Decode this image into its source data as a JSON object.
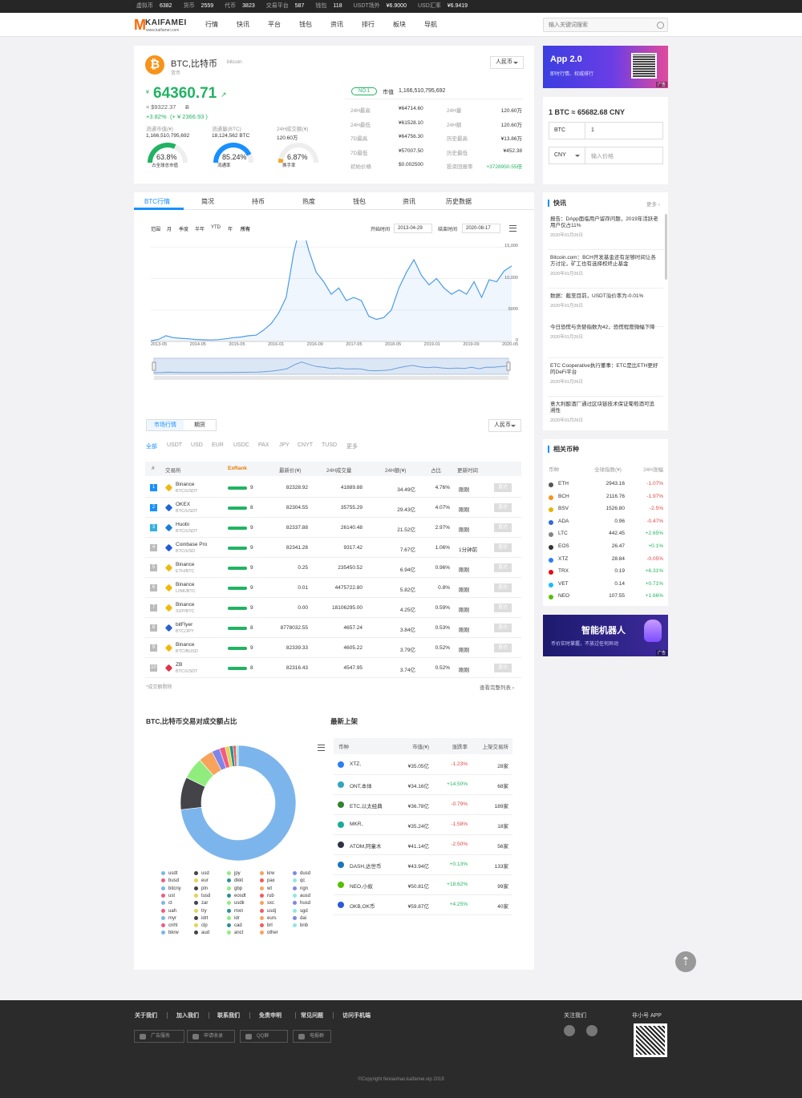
{
  "ticker": [
    {
      "label": "虚拟币",
      "value": "6382"
    },
    {
      "label": "货币",
      "value": "2559"
    },
    {
      "label": "代币",
      "value": "3823"
    },
    {
      "label": "交易平台",
      "value": "587"
    },
    {
      "label": "钱包",
      "value": "118"
    },
    {
      "label": "USDT场外",
      "value": "¥6.9000"
    },
    {
      "label": "USD汇率",
      "value": "¥6.9419"
    }
  ],
  "logo": {
    "letter": "M",
    "text": "KAIFAMEI",
    "url": "www.kaifamei.com"
  },
  "menu": [
    "行情",
    "快讯",
    "平台",
    "钱包",
    "资讯",
    "排行",
    "板块",
    "导航"
  ],
  "search": {
    "placeholder": "输入关键词搜索"
  },
  "coin": {
    "name": "BTC,比特币",
    "en": "bitcoin",
    "type": "货币",
    "currency_select": "人民币",
    "price_symbol": "¥",
    "price": "64360.71",
    "usd": "≈ $9322.37",
    "btc_unit": "Ƀ",
    "change": "+3.82%",
    "change_abs": "(+ ¥ 2366.93 )",
    "stats": [
      {
        "label": "流通市值(¥)",
        "value": "1,166,510,795,692"
      },
      {
        "label": "流通量(BTC)",
        "value": "18,124,562 BTC"
      },
      {
        "label": "24H成交额(¥)",
        "value": "120.60万"
      }
    ],
    "gauges": [
      {
        "value": "63.8%",
        "label": "占全球总市值",
        "pct": 0.638,
        "color": "#21b362"
      },
      {
        "value": "85.24%",
        "label": "流通率",
        "pct": 0.8524,
        "color": "#1890ff"
      },
      {
        "value": "6.87%",
        "label": "换手率",
        "pct": 0.0687,
        "color": "#f5a623"
      }
    ],
    "rank": "NO.1",
    "mcap_label": "市值",
    "mcap": "1,166,510,795,692",
    "details_left": [
      {
        "label": "24H最高",
        "value": "¥64714.60"
      },
      {
        "label": "24H最低",
        "value": "¥61528.10"
      },
      {
        "label": "7D最高",
        "value": "¥64756.30"
      },
      {
        "label": "7D最低",
        "value": "¥57007.50"
      },
      {
        "label": "初始价格",
        "value": "$0.002500"
      }
    ],
    "details_right": [
      {
        "label": "24H量",
        "value": "120.60万"
      },
      {
        "label": "24H额",
        "value": "120.60万"
      },
      {
        "label": "历史最高",
        "value": "¥13.86万"
      },
      {
        "label": "历史最低",
        "value": "¥452.38"
      },
      {
        "label": "投资回报率",
        "value": "+3728950.55倍"
      }
    ]
  },
  "tabs": [
    "BTC行情",
    "简况",
    "持币",
    "热度",
    "钱包",
    "资讯",
    "历史数据"
  ],
  "chart_controls": {
    "range_label": "范围",
    "ranges": [
      "月",
      "季度",
      "半年",
      "YTD",
      "年",
      "所有"
    ],
    "start_label": "开始时间",
    "start": "2013-04-29",
    "end_label": "结束时间",
    "end": "2020-08-17"
  },
  "chart_data": {
    "type": "line",
    "title": "",
    "x_ticks": [
      "2013-05",
      "2014-05",
      "2015-05",
      "2016-01",
      "2016-09",
      "2017-05",
      "2018-05",
      "2019-01",
      "2019-09",
      "2020-05"
    ],
    "y_ticks": [
      "0",
      "5000",
      "10,000",
      "15,000"
    ],
    "ylim": [
      0,
      20000
    ],
    "series": [
      {
        "values": [
          120,
          300,
          900,
          600,
          500,
          420,
          300,
          250,
          230,
          280,
          420,
          600,
          700,
          900,
          1000,
          1800,
          2800,
          4500,
          7000,
          14000,
          19000,
          14500,
          11000,
          9500,
          7500,
          8500,
          6500,
          7000,
          6500,
          4000,
          3500,
          3800,
          5000,
          8500,
          11000,
          13000,
          10500,
          9000,
          10000,
          8500,
          7500,
          8200,
          7500,
          9500,
          7000,
          9800,
          9500,
          11200,
          12000
        ]
      }
    ]
  },
  "market": {
    "tabs": [
      "市场行情",
      "期货"
    ],
    "currency_select": "人民币",
    "filters": [
      "全部",
      "USDT",
      "USD",
      "EUR",
      "USDC",
      "PAX",
      "JPY",
      "CNYT",
      "TUSD",
      "更多"
    ],
    "headers": [
      "#",
      "交易所",
      "ExRank",
      "最新价(¥)",
      "24H成交量",
      "24H额(¥)",
      "占比",
      "更新时间"
    ],
    "rows": [
      {
        "rank": "1",
        "exchange": "Binance",
        "pair": "BTC/USDT",
        "score": "9",
        "price": "82328.92",
        "volume": "41889.88",
        "amount": "34.49亿",
        "share": "4.76%",
        "time": "刚刚",
        "go": "直达",
        "color": "#1890ff",
        "logo": "#f0b90b"
      },
      {
        "rank": "2",
        "exchange": "OKEX",
        "pair": "BTC/USDT",
        "score": "8",
        "price": "82304.55",
        "volume": "35755.29",
        "amount": "29.43亿",
        "share": "4.07%",
        "time": "刚刚",
        "go": "直达",
        "color": "#1890ff",
        "logo": "#1f64d8"
      },
      {
        "rank": "3",
        "exchange": "Huobi",
        "pair": "BTC/USDT",
        "score": "9",
        "price": "82337.88",
        "volume": "26140.48",
        "amount": "21.52亿",
        "share": "2.97%",
        "time": "刚刚",
        "go": "直达",
        "color": "#35b1e0",
        "logo": "#1b7fd6"
      },
      {
        "rank": "4",
        "exchange": "Coinbase Pro",
        "pair": "BTC/USD",
        "score": "9",
        "price": "82341.28",
        "volume": "9317.42",
        "amount": "7.67亿",
        "share": "1.06%",
        "time": "1分钟前",
        "go": "直达",
        "color": "#bbbbbb",
        "logo": "#1f5bd8"
      },
      {
        "rank": "5",
        "exchange": "Binance",
        "pair": "ETH/BTC",
        "score": "9",
        "price": "0.25",
        "volume": "235450.52",
        "amount": "6.94亿",
        "share": "0.96%",
        "time": "刚刚",
        "go": "直达",
        "color": "#bbbbbb",
        "logo": "#f0b90b"
      },
      {
        "rank": "6",
        "exchange": "Binance",
        "pair": "LINK/BTC",
        "score": "9",
        "price": "0.01",
        "volume": "4475722.80",
        "amount": "5.82亿",
        "share": "0.8%",
        "time": "刚刚",
        "go": "直达",
        "color": "#bbbbbb",
        "logo": "#f0b90b"
      },
      {
        "rank": "7",
        "exchange": "Binance",
        "pair": "SXP/BTC",
        "score": "9",
        "price": "0.00",
        "volume": "18106295.00",
        "amount": "4.25亿",
        "share": "0.59%",
        "time": "刚刚",
        "go": "直达",
        "color": "#bbbbbb",
        "logo": "#f0b90b"
      },
      {
        "rank": "8",
        "exchange": "bitFlyer",
        "pair": "BTC/JPY",
        "score": "8",
        "price": "8778032.55",
        "volume": "4657.24",
        "amount": "3.84亿",
        "share": "0.53%",
        "time": "刚刚",
        "go": "直达",
        "color": "#bbbbbb",
        "logo": "#2a62c9"
      },
      {
        "rank": "9",
        "exchange": "Binance",
        "pair": "BTC/BUSD",
        "score": "9",
        "price": "82339.33",
        "volume": "4605.22",
        "amount": "3.79亿",
        "share": "0.52%",
        "time": "刚刚",
        "go": "直达",
        "color": "#bbbbbb",
        "logo": "#f0b90b"
      },
      {
        "rank": "10",
        "exchange": "ZB",
        "pair": "BTC/USDT",
        "score": "8",
        "price": "82316.43",
        "volume": "4547.95",
        "amount": "3.74亿",
        "share": "0.52%",
        "time": "刚刚",
        "go": "直达",
        "color": "#bbbbbb",
        "logo": "#e0344a"
      }
    ],
    "note": "*成交额剔除",
    "more": "查看完整列表"
  },
  "pie": {
    "title": "BTC,比特币交易对成交额占比",
    "slices": [
      {
        "name": "usdt",
        "value": 72,
        "color": "#7cb5ec"
      },
      {
        "name": "usd",
        "value": 9,
        "color": "#434348"
      },
      {
        "name": "jpy",
        "value": 6,
        "color": "#90ed7d"
      },
      {
        "name": "krw",
        "value": 4,
        "color": "#f7a35c"
      },
      {
        "name": "dusd",
        "value": 2.2,
        "color": "#8085e9"
      },
      {
        "name": "busd",
        "value": 1.6,
        "color": "#f15c80"
      },
      {
        "name": "eur",
        "value": 1.2,
        "color": "#e4d354"
      },
      {
        "name": "dkkt",
        "value": 1,
        "color": "#2b908f"
      },
      {
        "name": "pax",
        "value": 0.8,
        "color": "#f45b5b"
      },
      {
        "name": "qc",
        "value": 0.6,
        "color": "#91e8e1"
      }
    ],
    "legend": [
      "usdt",
      "usd",
      "jpy",
      "krw",
      "dusd",
      "busd",
      "eur",
      "dkkt",
      "pax",
      "qc",
      "bitcny",
      "pln",
      "gbp",
      "wt",
      "ngn",
      "ust",
      "tusd",
      "eosdt",
      "rub",
      "ausd",
      "ct",
      "zar",
      "usdk",
      "sxc",
      "husd",
      "uah",
      "try",
      "mxn",
      "usdj",
      "sgd",
      "myr",
      "idrt",
      "idr",
      "eurs",
      "dai",
      "cnht",
      "clp",
      "cad",
      "brl",
      "bnb",
      "bkrw",
      "aud",
      "anct",
      "other"
    ],
    "legend_colors": [
      "#7cb5ec",
      "#434348",
      "#90ed7d",
      "#f7a35c",
      "#8085e9",
      "#f15c80",
      "#e4d354",
      "#2b908f",
      "#f45b5b",
      "#91e8e1"
    ]
  },
  "newlist": {
    "title": "最新上架",
    "headers": [
      "币种",
      "市值(¥)",
      "涨跌率",
      "上架交易所"
    ],
    "rows": [
      {
        "name": "XTZ,",
        "cap": "¥35.05亿",
        "chg": "-1.23%",
        "ex": "28家",
        "up": false,
        "color": "#2c7df7"
      },
      {
        "name": "ONT,本体",
        "cap": "¥34.16亿",
        "chg": "+14.50%",
        "ex": "68家",
        "up": true,
        "color": "#32a4be"
      },
      {
        "name": "ETC,以太经典",
        "cap": "¥36.78亿",
        "chg": "-0.79%",
        "ex": "189家",
        "up": false,
        "color": "#328332"
      },
      {
        "name": "MKR,",
        "cap": "¥35.24亿",
        "chg": "-1.58%",
        "ex": "18家",
        "up": false,
        "color": "#1aab9b"
      },
      {
        "name": "ATOM,阿童木",
        "cap": "¥41.14亿",
        "chg": "-2.50%",
        "ex": "56家",
        "up": false,
        "color": "#2e3148"
      },
      {
        "name": "DASH,达世币",
        "cap": "¥43.94亿",
        "chg": "+0.13%",
        "ex": "133家",
        "up": true,
        "color": "#1c75bc"
      },
      {
        "name": "NEO,小蚁",
        "cap": "¥50.81亿",
        "chg": "+18.62%",
        "ex": "99家",
        "up": true,
        "color": "#58bf00"
      },
      {
        "name": "OKB,OK币",
        "cap": "¥59.87亿",
        "chg": "+4.25%",
        "ex": "40家",
        "up": true,
        "color": "#2a5ada"
      }
    ]
  },
  "sidebar": {
    "app_title": "App 2.0",
    "app_sub": "即时行情、权威排行",
    "ad": "广告",
    "converter": {
      "result": "1 BTC ≈ 65682.68 CNY",
      "from": "BTC",
      "from_value": "1",
      "to": "CNY",
      "to_placeholder": "输入价格"
    },
    "news_title": "快讯",
    "news_more": "更多",
    "news": [
      {
        "text": "报告：DApp面临用户留存问题，2019年活跃老用户仅占11%",
        "date": "2020年01月26日"
      },
      {
        "text": "Bitcoin.com：BCH开发基金还有足够时间让各方讨论，矿工也有选择权终止基金",
        "date": "2020年01月26日"
      },
      {
        "text": "数据：截至目前，USDT溢价率为-0.01%",
        "date": "2020年01月26日"
      },
      {
        "text": "今日恐慌与贪婪指数为42，恐慌程度微幅下降",
        "date": "2020年01月26日"
      },
      {
        "text": "ETC Cooperative执行董事：ETC是比ETH更好的DeFi平台",
        "date": "2020年01月26日"
      },
      {
        "text": "意大利酿酒厂通过区块链技术保证葡萄酒可追溯性",
        "date": "2020年01月26日"
      }
    ],
    "related_title": "相关币种",
    "related_headers": [
      "币种",
      "全球指数(¥)",
      "24H涨幅"
    ],
    "related": [
      {
        "name": "ETH",
        "price": "2943.16",
        "chg": "-1.07%",
        "up": false,
        "color": "#555"
      },
      {
        "name": "BCH",
        "price": "2116.76",
        "chg": "-1.97%",
        "up": false,
        "color": "#f7931a"
      },
      {
        "name": "BSV",
        "price": "1526.80",
        "chg": "-2.5%",
        "up": false,
        "color": "#eab300"
      },
      {
        "name": "ADA",
        "price": "0.96",
        "chg": "-0.47%",
        "up": false,
        "color": "#3468d1"
      },
      {
        "name": "LTC",
        "price": "442.45",
        "chg": "+2.65%",
        "up": true,
        "color": "#838383"
      },
      {
        "name": "EOS",
        "price": "26.47",
        "chg": "+0.1%",
        "up": true,
        "color": "#333"
      },
      {
        "name": "XTZ",
        "price": "28.84",
        "chg": "-0.05%",
        "up": false,
        "color": "#2c7df7"
      },
      {
        "name": "TRX",
        "price": "0.19",
        "chg": "+6.31%",
        "up": true,
        "color": "#e50915"
      },
      {
        "name": "VET",
        "price": "0.14",
        "chg": "+0.71%",
        "up": true,
        "color": "#15bdff"
      },
      {
        "name": "NEO",
        "price": "107.55",
        "chg": "+1.66%",
        "up": true,
        "color": "#58bf00"
      }
    ],
    "robot_title": "智能机器人",
    "robot_sub": "币价实时掌握，不放过任何异动",
    "robot_ad": "广告"
  },
  "footer": {
    "links": [
      "关于我们",
      "加入我们",
      "联系我们",
      "免责申明",
      "常见问题",
      "访问手机端"
    ],
    "buttons": [
      "广告服务",
      "申请收录",
      "QQ群",
      "电报群"
    ],
    "follow": "关注我们",
    "app": "非小号 APP",
    "copyright": "©Copyright feixiaohao.kaifamei.vip 2019"
  }
}
